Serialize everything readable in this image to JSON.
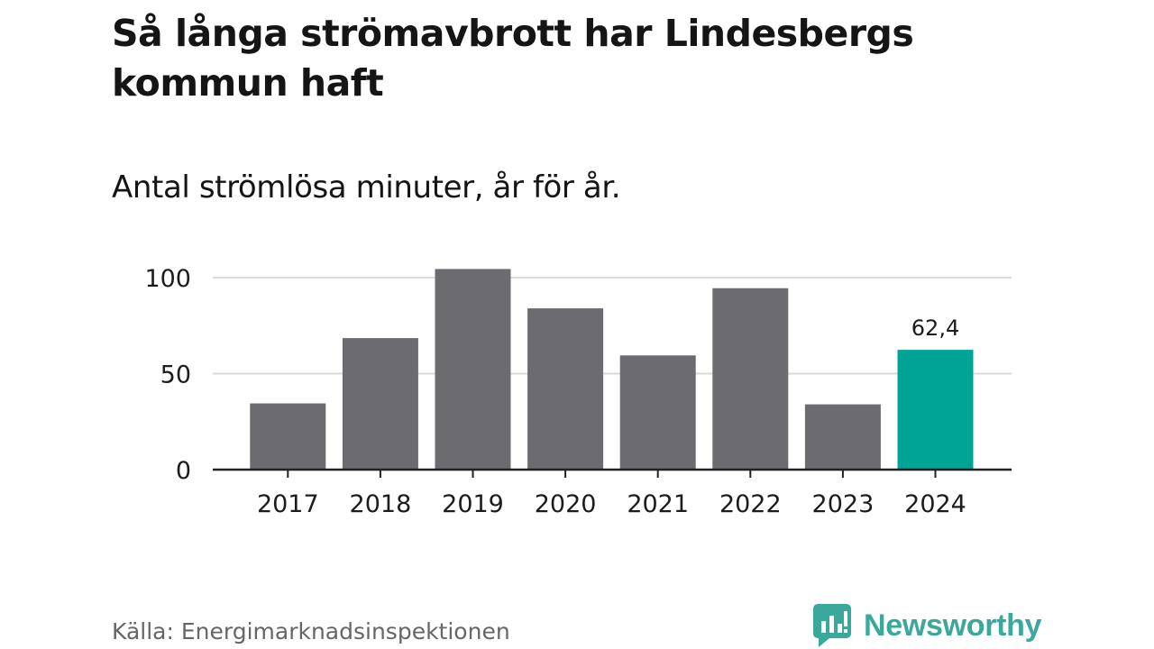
{
  "title": "Så långa strömavbrott har Lindesbergs kommun haft",
  "subtitle": "Antal strömlösa minuter, år för år.",
  "source": "Källa: Energimarknadsinspektionen",
  "brand": {
    "name": "Newsworthy",
    "icon": "bar-chart-speech-bubble-icon",
    "color": "#3aa89a"
  },
  "colors": {
    "bar": "#6c6b70",
    "highlight": "#00a497",
    "grid": "#d9d9d9",
    "axis": "#222222"
  },
  "chart_data": {
    "type": "bar",
    "title": "Så långa strömavbrott har Lindesbergs kommun haft",
    "subtitle": "Antal strömlösa minuter, år för år.",
    "categories": [
      "2017",
      "2018",
      "2019",
      "2020",
      "2021",
      "2022",
      "2023",
      "2024"
    ],
    "values": [
      34.5,
      68.5,
      104.5,
      84,
      59.5,
      94.5,
      34,
      62.4
    ],
    "highlight_index": 7,
    "data_labels": [
      {
        "index": 7,
        "text": "62,4"
      }
    ],
    "yticks": [
      0,
      50,
      100
    ],
    "ylim": [
      0,
      110
    ],
    "xlabel": "",
    "ylabel": "",
    "grid": true
  }
}
